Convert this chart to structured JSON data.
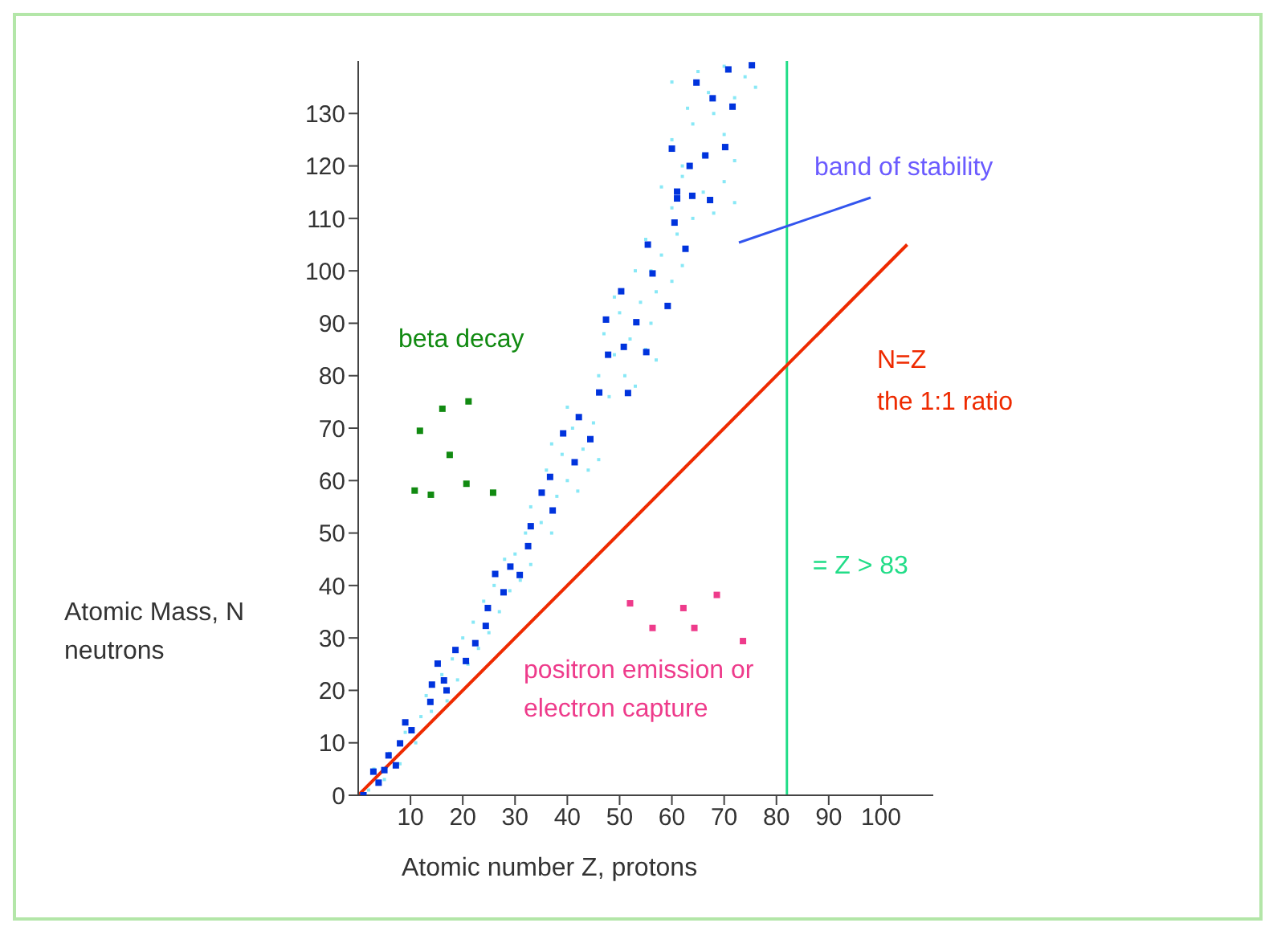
{
  "chart_data": {
    "type": "scatter",
    "xlabel": "Atomic number Z, protons",
    "ylabel": "Atomic Mass, N neutrons",
    "xlim": [
      0,
      110
    ],
    "ylim": [
      0,
      140
    ],
    "xticks": [
      10,
      20,
      30,
      40,
      50,
      60,
      70,
      80,
      90,
      100
    ],
    "yticks": [
      0,
      10,
      20,
      30,
      40,
      50,
      60,
      70,
      80,
      90,
      100,
      110,
      120,
      130
    ],
    "series": [
      {
        "marker": "square",
        "color": "#88e8f6",
        "x": [
          2,
          3,
          5,
          6,
          8,
          9,
          11,
          12,
          13,
          14,
          16,
          17,
          18,
          19,
          20,
          21,
          22,
          23,
          24,
          25,
          26,
          27,
          28,
          29,
          30,
          31,
          32,
          33,
          33,
          35,
          36,
          37,
          38,
          39,
          40,
          41,
          42,
          43,
          44,
          45,
          46,
          40,
          37,
          46,
          47,
          48,
          49,
          50,
          51,
          52,
          53,
          54,
          55,
          56,
          49,
          57,
          53,
          55,
          57,
          58,
          60,
          61,
          62,
          56,
          58,
          60,
          62,
          64,
          66,
          68,
          70,
          72,
          60,
          62,
          64,
          66,
          68,
          70,
          72,
          60,
          63,
          65,
          67,
          70,
          72,
          74,
          76
        ],
        "values": [
          1,
          5,
          3,
          8,
          6,
          12,
          10,
          15,
          19,
          16,
          23,
          18,
          26,
          22,
          30,
          25,
          33,
          28,
          37,
          31,
          40,
          35,
          45,
          39,
          46,
          41,
          50,
          44,
          55,
          52,
          62,
          50,
          57,
          65,
          60,
          70,
          58,
          66,
          62,
          71,
          64,
          74,
          67,
          80,
          88,
          76,
          84,
          92,
          80,
          87,
          78,
          94,
          85,
          90,
          95,
          83,
          100,
          106,
          96,
          103,
          98,
          107,
          101,
          100,
          116,
          112,
          118,
          110,
          115,
          111,
          117,
          113,
          125,
          120,
          128,
          122,
          130,
          126,
          121,
          136,
          131,
          138,
          134,
          139,
          133,
          137,
          135
        ]
      },
      {
        "marker": "square",
        "color": "#0033dd",
        "x": [
          70.8,
          75.3,
          64.7,
          67.8,
          71.6,
          60,
          63.4,
          66.4,
          70.2,
          61,
          61,
          63.9,
          67.3,
          60.5,
          55.4,
          62.6,
          56.3,
          50.3,
          59.2,
          47.4,
          53.2,
          50.8,
          47.8,
          55.1,
          46.1,
          51.6,
          42.2,
          39.2,
          44.4,
          41.4,
          36.7,
          35.1,
          37.2,
          33,
          32.5,
          26.2,
          29.1,
          30.9,
          27.8,
          24.8,
          24.4,
          22.4,
          18.6,
          20.6,
          15.2,
          14.1,
          16.4,
          16.9,
          13.8,
          9,
          10.2,
          8,
          5.8,
          5,
          2.9,
          3.9,
          7.2,
          1
        ],
        "values": [
          138.4,
          139.2,
          135.9,
          132.9,
          131.3,
          123.3,
          120,
          122,
          123.6,
          115.1,
          113.8,
          114.3,
          113.5,
          109.2,
          105,
          104.2,
          99.5,
          96.1,
          93.3,
          90.7,
          90.2,
          85.5,
          84,
          84.5,
          76.8,
          76.7,
          72.1,
          69,
          67.9,
          63.5,
          60.7,
          57.7,
          54.3,
          51.3,
          47.5,
          42.2,
          43.6,
          42,
          38.7,
          35.7,
          32.3,
          29,
          27.7,
          25.6,
          25.1,
          21.1,
          21.9,
          20,
          17.8,
          13.9,
          12.4,
          9.9,
          7.6,
          4.8,
          4.5,
          2.4,
          5.7,
          0
        ]
      },
      {
        "name": "beta decay",
        "marker": "square",
        "color": "#118a11",
        "x": [
          11.8,
          17.5,
          10.8,
          13.9,
          20.7,
          25.8,
          16.1,
          21.1
        ],
        "values": [
          69.5,
          64.9,
          58.1,
          57.3,
          59.4,
          57.7,
          73.7,
          75.1
        ]
      },
      {
        "name": "positron emission or electron capture",
        "marker": "square",
        "color": "#ee3b8b",
        "x": [
          52,
          56.3,
          62.2,
          64.3,
          68.6,
          73.6
        ],
        "values": [
          36.6,
          31.9,
          35.7,
          31.9,
          38.2,
          29.4
        ]
      },
      {
        "name": "N=Z",
        "type": "line",
        "marker": "none",
        "color": "#ee2a00",
        "x": [
          0,
          105
        ],
        "values": [
          0,
          105
        ]
      }
    ],
    "ref_lines": [
      {
        "axis": "x",
        "value": 82,
        "label": "= Z > 83",
        "color": "#22dd88"
      }
    ],
    "annotations": [
      "band of stability",
      "the 1:1 ratio"
    ]
  }
}
